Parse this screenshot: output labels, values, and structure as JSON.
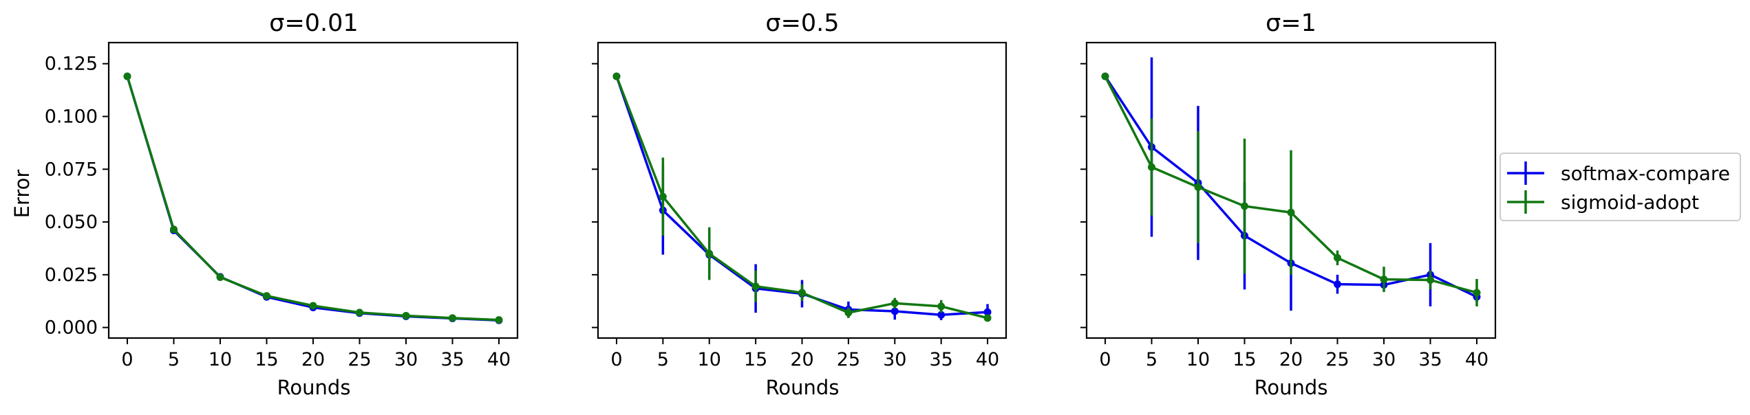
{
  "colors": {
    "softmax": "#0000ee",
    "sigmoid": "#117711"
  },
  "legend": [
    {
      "label": "softmax-compare",
      "color": "#0000ee"
    },
    {
      "label": "sigmoid-adopt",
      "color": "#117711"
    }
  ],
  "ylabel": "Error",
  "chart_data": [
    {
      "type": "line",
      "title": "σ=0.01",
      "xlabel": "Rounds",
      "ylabel": "Error",
      "xlim": [
        -2,
        42
      ],
      "ylim": [
        -0.005,
        0.135
      ],
      "xticks": [
        0,
        5,
        10,
        15,
        20,
        25,
        30,
        35,
        40
      ],
      "yticks": [
        "0.000",
        "0.025",
        "0.050",
        "0.075",
        "0.100",
        "0.125"
      ],
      "x": [
        0,
        5,
        10,
        15,
        20,
        25,
        30,
        35,
        40
      ],
      "series": [
        {
          "name": "softmax-compare",
          "values": [
            0.119,
            0.046,
            0.024,
            0.0145,
            0.0095,
            0.0068,
            0.0053,
            0.0043,
            0.0034
          ],
          "err": [
            0,
            0,
            0,
            0,
            0,
            0,
            0,
            0,
            0
          ]
        },
        {
          "name": "sigmoid-adopt",
          "values": [
            0.119,
            0.0465,
            0.0238,
            0.015,
            0.0103,
            0.0071,
            0.0056,
            0.0045,
            0.0036
          ],
          "err": [
            0,
            0,
            0,
            0,
            0,
            0,
            0,
            0,
            0
          ]
        }
      ]
    },
    {
      "type": "line",
      "title": "σ=0.5",
      "xlabel": "Rounds",
      "ylabel": "",
      "xlim": [
        -2,
        42
      ],
      "ylim": [
        -0.005,
        0.135
      ],
      "xticks": [
        0,
        5,
        10,
        15,
        20,
        25,
        30,
        35,
        40
      ],
      "yticks": [],
      "x": [
        0,
        5,
        10,
        15,
        20,
        25,
        30,
        35,
        40
      ],
      "series": [
        {
          "name": "softmax-compare",
          "values": [
            0.119,
            0.0555,
            0.0345,
            0.0185,
            0.016,
            0.0085,
            0.0077,
            0.006,
            0.0073
          ],
          "err": [
            0,
            0.021,
            0.011,
            0.0115,
            0.0065,
            0.0038,
            0.004,
            0.0025,
            0.0038
          ]
        },
        {
          "name": "sigmoid-adopt",
          "values": [
            0.119,
            0.062,
            0.035,
            0.0195,
            0.0165,
            0.007,
            0.0115,
            0.01,
            0.0045
          ],
          "err": [
            0,
            0.0185,
            0.0125,
            0.0075,
            0.004,
            0.0025,
            0.0025,
            0.003,
            0.001
          ]
        }
      ]
    },
    {
      "type": "line",
      "title": "σ=1",
      "xlabel": "Rounds",
      "ylabel": "",
      "xlim": [
        -2,
        42
      ],
      "ylim": [
        -0.005,
        0.135
      ],
      "xticks": [
        0,
        5,
        10,
        15,
        20,
        25,
        30,
        35,
        40
      ],
      "yticks": [],
      "x": [
        0,
        5,
        10,
        15,
        20,
        25,
        30,
        35,
        40
      ],
      "series": [
        {
          "name": "softmax-compare",
          "values": [
            0.119,
            0.0855,
            0.0685,
            0.0435,
            0.0305,
            0.0205,
            0.0202,
            0.025,
            0.0145
          ],
          "err": [
            0,
            0.0425,
            0.0365,
            0.0255,
            0.0225,
            0.0045,
            0.0005,
            0.015,
            0.0025
          ]
        },
        {
          "name": "sigmoid-adopt",
          "values": [
            0.119,
            0.076,
            0.0665,
            0.0575,
            0.0545,
            0.033,
            0.0228,
            0.0225,
            0.0165
          ],
          "err": [
            0,
            0.023,
            0.0265,
            0.032,
            0.0295,
            0.0035,
            0.006,
            0.0045,
            0.0065
          ]
        }
      ]
    }
  ]
}
